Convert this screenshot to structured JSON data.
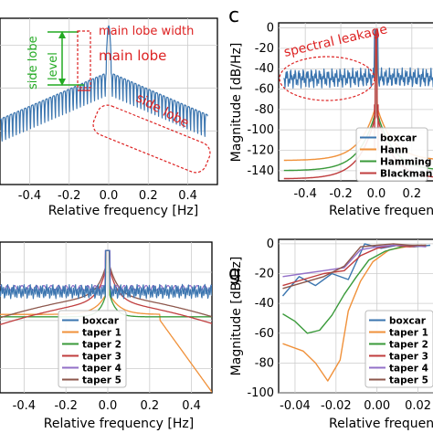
{
  "colors": {
    "boxcar": "#3b75af",
    "hann": "#f0913a",
    "hamming": "#3a9a3a",
    "blackman": "#c03d3e",
    "taper4": "#9370c8",
    "taper5": "#8c564b",
    "annotation_red": "#d22222",
    "annotation_green": "#22aa22",
    "grid": "#cccccc"
  },
  "chart_data": [
    {
      "panel": "top-left",
      "type": "line",
      "xlabel": "Relative frequency [Hz]",
      "xticks": [
        "-0.4",
        "-0.2",
        "0.0",
        "0.2",
        "0.4"
      ],
      "xlim": [
        -0.55,
        0.55
      ],
      "grid": true,
      "series": [
        {
          "name": "boxcar",
          "style": "single window spectrum with side lobes"
        }
      ],
      "annotations": {
        "side_lobe_level": "side lobe",
        "level": "level",
        "main_lobe_width": "main lobe width",
        "main_lobe": "main lobe",
        "side_lobe": "side lobe"
      }
    },
    {
      "panel": "c",
      "letter": "c",
      "type": "line",
      "title_annotation": "spectral leakage",
      "xlabel": "Relative frequenc",
      "ylabel": "Magnitude [dB/Hz]",
      "xticks": [
        "-0.4",
        "-0.2",
        "0.0",
        "0.2"
      ],
      "yticks": [
        "0",
        "-20",
        "-40",
        "-60",
        "-80",
        "-100",
        "-120",
        "-140"
      ],
      "xlim": [
        -0.55,
        0.35
      ],
      "ylim": [
        -150,
        5
      ],
      "grid": true,
      "legend": {
        "placement": "lower-right",
        "entries": [
          "boxcar",
          "Hann",
          "Hamming",
          "Blackman"
        ]
      },
      "series": [
        {
          "name": "boxcar",
          "floor": -45,
          "ripple": 10
        },
        {
          "name": "Hann",
          "edge_value": -130
        },
        {
          "name": "Hamming",
          "edge_value": -140
        },
        {
          "name": "Blackman",
          "edge_value": -148
        }
      ]
    },
    {
      "panel": "bottom-left",
      "type": "line",
      "xlabel": "Relative frequency [Hz]",
      "xticks": [
        "-0.4",
        "-0.2",
        "0.0",
        "0.2",
        "0.4"
      ],
      "xlim": [
        -0.55,
        0.55
      ],
      "grid": true,
      "legend": {
        "placement": "lower-center",
        "entries": [
          "boxcar",
          "taper 1",
          "taper 2",
          "taper 3",
          "taper 4",
          "taper 5"
        ]
      }
    },
    {
      "panel": "g",
      "letter": "g",
      "type": "line",
      "xlabel": "Relative frequenc",
      "ylabel": "Magnitude [dB/Hz]",
      "xticks": [
        "-0.04",
        "-0.02",
        "0.00",
        "0.02"
      ],
      "yticks": [
        "0",
        "-20",
        "-40",
        "-60",
        "-80",
        "-100"
      ],
      "xlim": [
        -0.048,
        0.03
      ],
      "ylim": [
        -100,
        3
      ],
      "grid": true,
      "legend": {
        "placement": "lower-right",
        "entries": [
          "boxcar",
          "taper 1",
          "taper 2",
          "taper 3",
          "taper 4",
          "taper 5"
        ]
      },
      "series": [
        {
          "name": "boxcar",
          "x": [
            -0.046,
            -0.038,
            -0.03,
            -0.022,
            -0.014,
            -0.006,
            0.002,
            0.01,
            0.018,
            0.026
          ],
          "y": [
            -35,
            -22,
            -28,
            -20,
            -24,
            0,
            -3,
            -1,
            -2,
            -1
          ]
        },
        {
          "name": "taper 1",
          "x": [
            -0.046,
            -0.036,
            -0.03,
            -0.024,
            -0.018,
            -0.014,
            -0.008,
            -0.002,
            0.006,
            0.014,
            0.022
          ],
          "y": [
            -67,
            -72,
            -80,
            -92,
            -78,
            -45,
            -25,
            -12,
            -4,
            -2,
            -1
          ]
        },
        {
          "name": "taper 2",
          "x": [
            -0.046,
            -0.04,
            -0.034,
            -0.028,
            -0.022,
            -0.016,
            -0.01,
            -0.004,
            0.004,
            0.012,
            0.02
          ],
          "y": [
            -47,
            -52,
            -60,
            -58,
            -48,
            -34,
            -22,
            -11,
            -5,
            -2,
            -1
          ]
        },
        {
          "name": "taper 3",
          "x": [
            -0.046,
            -0.036,
            -0.026,
            -0.016,
            -0.008,
            0.0,
            0.008,
            0.016,
            0.024
          ],
          "y": [
            -28,
            -24,
            -20,
            -18,
            -8,
            -3,
            -1,
            -2,
            -1
          ]
        },
        {
          "name": "taper 4",
          "x": [
            -0.046,
            -0.036,
            -0.026,
            -0.016,
            -0.008,
            0.0,
            0.008,
            0.016,
            0.024
          ],
          "y": [
            -22,
            -20,
            -18,
            -16,
            -4,
            -2,
            -1,
            -1,
            -2
          ]
        },
        {
          "name": "taper 5",
          "x": [
            -0.046,
            -0.036,
            -0.026,
            -0.016,
            -0.008,
            0.0,
            0.008,
            0.016,
            0.024
          ],
          "y": [
            -30,
            -26,
            -22,
            -15,
            -2,
            -1,
            0,
            -1,
            -1
          ]
        }
      ]
    }
  ]
}
